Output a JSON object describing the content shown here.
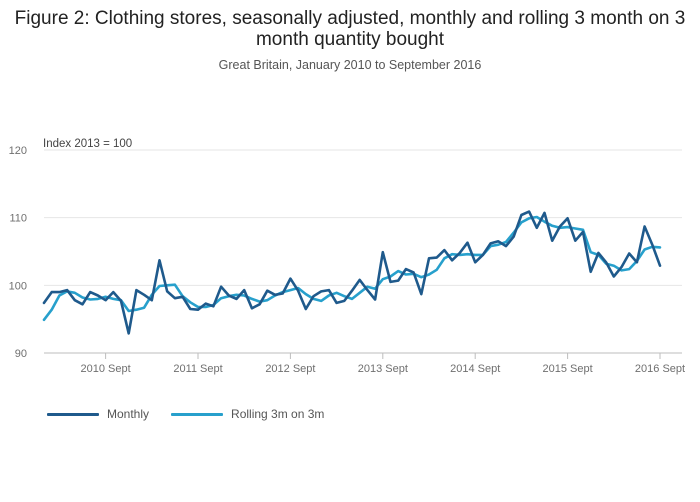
{
  "title": "Figure 2: Clothing stores, seasonally adjusted, monthly and rolling 3 month on 3 month quantity bought",
  "subtitle": "Great Britain, January 2010 to September 2016",
  "colors": {
    "monthly": "#1f5a8c",
    "rolling": "#27a0cc"
  },
  "chart_data": {
    "type": "line",
    "ylabel": "Index 2013 = 100",
    "xlabel": "",
    "ylim": [
      90,
      120
    ],
    "yticks": [
      90,
      100,
      110,
      120
    ],
    "x_start": "2010-01",
    "xlim_months": [
      0,
      80
    ],
    "x_tick_months": [
      8,
      20,
      32,
      44,
      56,
      68,
      80
    ],
    "x_tick_labels": [
      "2010 Sept",
      "2011 Sept",
      "2012 Sept",
      "2013 Sept",
      "2014 Sept",
      "2015 Sept",
      "2016 Sept"
    ],
    "grid": true,
    "legend_position": "bottom-left",
    "series": [
      {
        "name": "Monthly",
        "key": "monthly",
        "values": [
          97.4,
          99.0,
          99.0,
          99.3,
          97.8,
          97.2,
          99.0,
          98.5,
          97.8,
          99.0,
          97.7,
          92.9,
          99.3,
          98.6,
          97.8,
          103.7,
          99.1,
          98.1,
          98.3,
          96.5,
          96.4,
          97.3,
          96.9,
          99.8,
          98.5,
          98.0,
          99.3,
          96.6,
          97.2,
          99.2,
          98.6,
          98.8,
          101.0,
          99.2,
          96.5,
          98.4,
          99.1,
          99.3,
          97.4,
          97.7,
          99.2,
          100.8,
          99.3,
          97.9,
          104.9,
          100.5,
          100.7,
          102.4,
          101.9,
          98.7,
          104.0,
          104.1,
          105.2,
          103.7,
          104.8,
          106.3,
          103.4,
          104.5,
          106.2,
          106.5,
          105.8,
          107.2,
          110.4,
          110.9,
          108.5,
          110.7,
          106.6,
          108.7,
          109.9,
          106.6,
          107.9,
          102.0,
          104.8,
          103.4,
          101.3,
          102.7,
          104.7,
          103.4,
          108.7,
          106.0,
          102.9
        ]
      },
      {
        "name": "Rolling 3m on 3m",
        "key": "rolling",
        "values": [
          94.9,
          96.4,
          98.5,
          99.1,
          98.9,
          98.2,
          97.9,
          98.0,
          98.3,
          98.0,
          97.8,
          96.2,
          96.4,
          96.7,
          98.6,
          99.9,
          100.0,
          100.1,
          98.4,
          97.5,
          96.8,
          96.8,
          97.1,
          98.1,
          98.4,
          98.6,
          98.5,
          98.0,
          97.6,
          97.8,
          98.5,
          99.0,
          99.3,
          99.6,
          98.7,
          98.0,
          97.7,
          98.5,
          98.9,
          98.4,
          98.0,
          98.9,
          99.8,
          99.5,
          100.9,
          101.3,
          102.1,
          101.6,
          101.7,
          101.2,
          101.6,
          102.3,
          104.0,
          104.6,
          104.5,
          104.6,
          104.5,
          104.5,
          105.8,
          106.0,
          106.4,
          107.8,
          109.3,
          109.9,
          110.1,
          109.4,
          108.8,
          108.5,
          108.6,
          108.4,
          108.2,
          104.9,
          104.5,
          103.2,
          102.9,
          102.2,
          102.4,
          103.6,
          105.3,
          105.7,
          105.6
        ]
      }
    ]
  }
}
